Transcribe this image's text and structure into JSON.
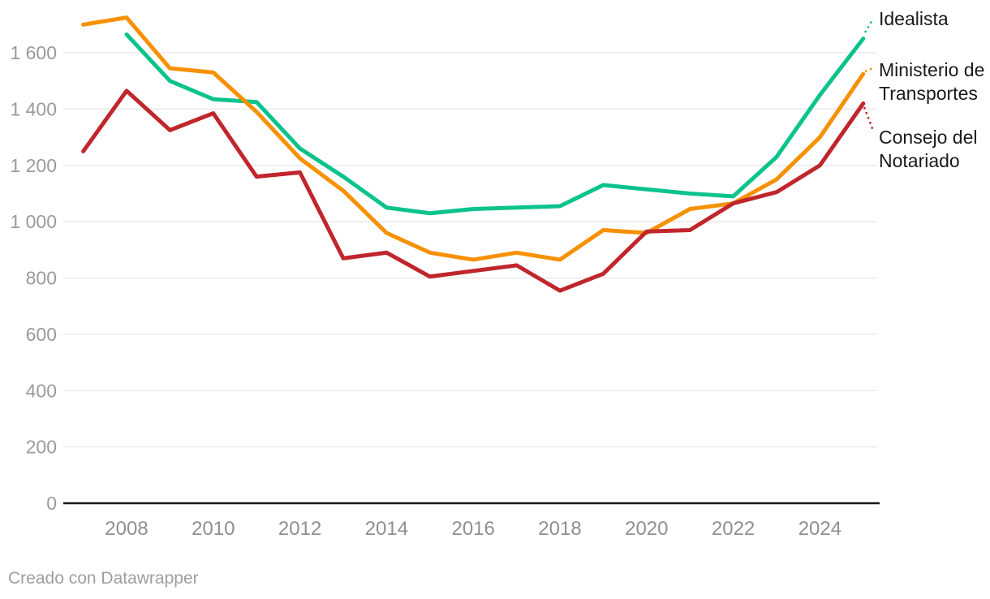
{
  "footer": {
    "credit": "Creado con Datawrapper"
  },
  "colors": {
    "grid": "#e6e6e6",
    "baseline": "#191919",
    "y_axis_text": "#9a9a9a",
    "x_axis_text": "#8f8f8f",
    "label_text": "#1a1a1a",
    "background": "#ffffff"
  },
  "axes": {
    "y_ticks": [
      {
        "value": 0,
        "label": "0"
      },
      {
        "value": 200,
        "label": "200"
      },
      {
        "value": 400,
        "label": "400"
      },
      {
        "value": 600,
        "label": "600"
      },
      {
        "value": 800,
        "label": "800"
      },
      {
        "value": 1000,
        "label": "1 000"
      },
      {
        "value": 1200,
        "label": "1 200"
      },
      {
        "value": 1400,
        "label": "1 400"
      },
      {
        "value": 1600,
        "label": "1 600"
      }
    ],
    "x_ticks": [
      {
        "value": 2008,
        "label": "2008"
      },
      {
        "value": 2010,
        "label": "2010"
      },
      {
        "value": 2012,
        "label": "2012"
      },
      {
        "value": 2014,
        "label": "2014"
      },
      {
        "value": 2016,
        "label": "2016"
      },
      {
        "value": 2018,
        "label": "2018"
      },
      {
        "value": 2020,
        "label": "2020"
      },
      {
        "value": 2022,
        "label": "2022"
      },
      {
        "value": 2024,
        "label": "2024"
      }
    ]
  },
  "chart_data": {
    "type": "line",
    "title": "",
    "xlabel": "",
    "ylabel": "",
    "ylim": [
      0,
      1730
    ],
    "grid": "horizontal",
    "legend_position": "right-direct-labels",
    "x": [
      2007,
      2008,
      2009,
      2010,
      2011,
      2012,
      2013,
      2014,
      2015,
      2016,
      2017,
      2018,
      2019,
      2020,
      2021,
      2022,
      2023,
      2024,
      2025
    ],
    "series": [
      {
        "name": "Idealista",
        "color": "#0cc38c",
        "values": [
          null,
          1665,
          1500,
          1435,
          1425,
          1260,
          1160,
          1050,
          1030,
          1045,
          1050,
          1055,
          1130,
          1115,
          1100,
          1090,
          1230,
          1450,
          1650
        ]
      },
      {
        "name": "Ministerio de Transportes",
        "color": "#f69104",
        "values": [
          1700,
          1725,
          1545,
          1530,
          1390,
          1225,
          1110,
          960,
          890,
          865,
          890,
          865,
          970,
          960,
          1045,
          1065,
          1150,
          1300,
          1525
        ]
      },
      {
        "name": "Consejo del Notariado",
        "color": "#c0262c",
        "values": [
          1250,
          1465,
          1325,
          1385,
          1160,
          1175,
          870,
          890,
          805,
          825,
          845,
          755,
          815,
          965,
          970,
          1065,
          1105,
          1200,
          1420
        ]
      }
    ]
  }
}
